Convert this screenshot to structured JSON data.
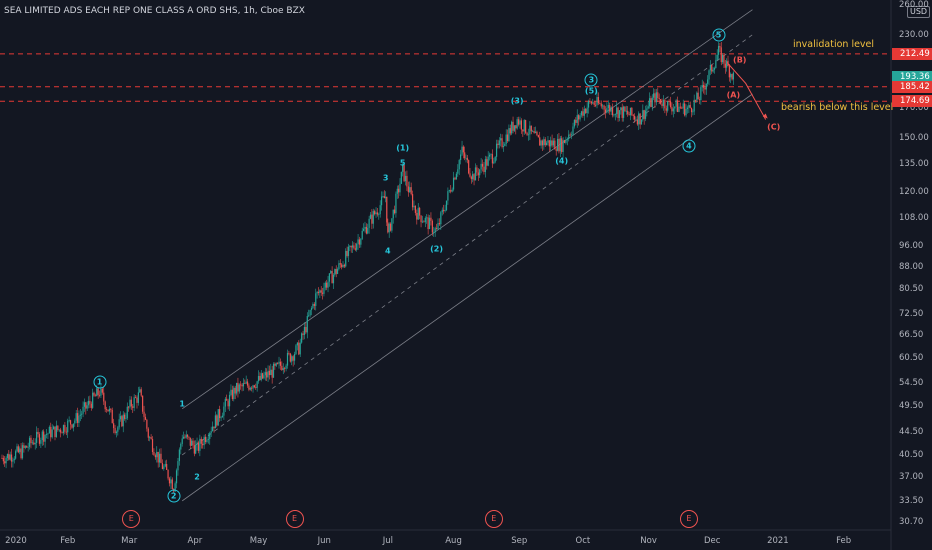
{
  "header": {
    "title": "SEA LIMITED ADS EACH REP ONE CLASS A ORD SHS, 1h, Cboe BZX",
    "currency": "USD"
  },
  "annotations": {
    "invalidation": "invalidation level",
    "bearish": "bearish below this level"
  },
  "price_labels": [
    {
      "label": "212.49",
      "value": 212.49,
      "color": "#e53935"
    },
    {
      "label": "193.36",
      "value": 193.36,
      "color": "#26a69a"
    },
    {
      "label": "185.42",
      "value": 185.42,
      "color": "#e53935"
    },
    {
      "label": "174.69",
      "value": 174.69,
      "color": "#e53935"
    }
  ],
  "waves": {
    "primary": [
      {
        "label": "1",
        "date": "2020-02-16",
        "value": 52.6
      },
      {
        "label": "2",
        "date": "2020-03-22",
        "value": 35.6
      },
      {
        "label": "3",
        "date": "2020-10-05",
        "value": 183
      },
      {
        "label": "4",
        "date": "2020-11-20",
        "value": 151
      },
      {
        "label": "5",
        "date": "2020-12-04",
        "value": 220
      }
    ],
    "intermediate": [
      {
        "label": "(1)",
        "date": "2020-07-08",
        "value": 138
      },
      {
        "label": "(2)",
        "date": "2020-07-24",
        "value": 99
      },
      {
        "label": "(3)",
        "date": "2020-08-31",
        "value": 168
      },
      {
        "label": "(4)",
        "date": "2020-09-21",
        "value": 142
      },
      {
        "label": "(5)",
        "date": "2020-10-05",
        "value": 175
      }
    ],
    "minor": [
      {
        "label": "1",
        "date": "2020-03-26",
        "value": 48
      },
      {
        "label": "2",
        "date": "2020-04-02",
        "value": 38.6
      },
      {
        "label": "3",
        "date": "2020-06-30",
        "value": 122
      },
      {
        "label": "4",
        "date": "2020-07-01",
        "value": 98
      },
      {
        "label": "5",
        "date": "2020-07-08",
        "value": 130
      }
    ],
    "corrective": [
      {
        "label": "(B)",
        "date": "2020-12-14",
        "value": 207,
        "color": "#ef5350"
      },
      {
        "label": "(A)",
        "date": "2020-12-11",
        "value": 179,
        "color": "#ef5350"
      },
      {
        "label": "(C)",
        "date": "2020-12-30",
        "value": 157,
        "color": "#ef5350"
      }
    ]
  },
  "events": [
    {
      "label": "E",
      "date": "2020-03-02"
    },
    {
      "label": "E",
      "date": "2020-05-18"
    },
    {
      "label": "E",
      "date": "2020-08-20"
    },
    {
      "label": "E",
      "date": "2020-11-20"
    }
  ],
  "chart_data": {
    "type": "line",
    "title": "SEA LIMITED ADS EACH REP ONE CLASS A ORD SHS, 1h, Cboe BZX",
    "xlabel": "",
    "ylabel": "",
    "y_scale": "log",
    "ylim": [
      30.7,
      260
    ],
    "xlim": [
      "2020-01-01",
      "2021-03-03"
    ],
    "grid": false,
    "y_ticks": [
      260,
      230,
      212.49,
      193.36,
      185.42,
      174.69,
      170,
      150,
      135,
      120,
      108,
      96,
      88,
      80.5,
      72.5,
      66.5,
      60.5,
      54.5,
      49.5,
      44.5,
      40.5,
      37,
      33.5,
      30.7
    ],
    "x_ticks": [
      {
        "label": "2020",
        "date": "2020-01-01"
      },
      {
        "label": "Feb",
        "date": "2020-02-01"
      },
      {
        "label": "Mar",
        "date": "2020-03-01"
      },
      {
        "label": "Apr",
        "date": "2020-04-01"
      },
      {
        "label": "May",
        "date": "2020-05-01"
      },
      {
        "label": "Jun",
        "date": "2020-06-01"
      },
      {
        "label": "Jul",
        "date": "2020-07-01"
      },
      {
        "label": "Aug",
        "date": "2020-08-01"
      },
      {
        "label": "Sep",
        "date": "2020-09-01"
      },
      {
        "label": "Oct",
        "date": "2020-10-01"
      },
      {
        "label": "Nov",
        "date": "2020-11-01"
      },
      {
        "label": "Dec",
        "date": "2020-12-01"
      },
      {
        "label": "2021",
        "date": "2021-01-01"
      },
      {
        "label": "Feb",
        "date": "2021-02-01"
      }
    ],
    "series": [
      {
        "values": [
          [
            "2020-01-01",
            40
          ],
          [
            "2020-01-10",
            41
          ],
          [
            "2020-01-16",
            43
          ],
          [
            "2020-01-20",
            44
          ],
          [
            "2020-01-28",
            45
          ],
          [
            "2020-02-05",
            47
          ],
          [
            "2020-02-16",
            52.6
          ],
          [
            "2020-02-20",
            49
          ],
          [
            "2020-02-24",
            45
          ],
          [
            "2020-03-02",
            50
          ],
          [
            "2020-03-06",
            52
          ],
          [
            "2020-03-10",
            44
          ],
          [
            "2020-03-16",
            39
          ],
          [
            "2020-03-20",
            37
          ],
          [
            "2020-03-22",
            35.6
          ],
          [
            "2020-03-26",
            44
          ],
          [
            "2020-04-02",
            41.5
          ],
          [
            "2020-04-08",
            45
          ],
          [
            "2020-04-20",
            53
          ],
          [
            "2020-05-01",
            55
          ],
          [
            "2020-05-10",
            58
          ],
          [
            "2020-05-20",
            63
          ],
          [
            "2020-05-28",
            78
          ],
          [
            "2020-06-06",
            86
          ],
          [
            "2020-06-15",
            96
          ],
          [
            "2020-06-30",
            118
          ],
          [
            "2020-07-01",
            100
          ],
          [
            "2020-07-08",
            131
          ],
          [
            "2020-07-14",
            111
          ],
          [
            "2020-07-24",
            102
          ],
          [
            "2020-08-05",
            142
          ],
          [
            "2020-08-10",
            128
          ],
          [
            "2020-08-20",
            140
          ],
          [
            "2020-08-31",
            162
          ],
          [
            "2020-09-10",
            148
          ],
          [
            "2020-09-21",
            146
          ],
          [
            "2020-10-01",
            168
          ],
          [
            "2020-10-05",
            174
          ],
          [
            "2020-10-15",
            169
          ],
          [
            "2020-10-28",
            163
          ],
          [
            "2020-11-04",
            178
          ],
          [
            "2020-11-10",
            172
          ],
          [
            "2020-11-20",
            169
          ],
          [
            "2020-11-25",
            178
          ],
          [
            "2020-12-04",
            214
          ],
          [
            "2020-12-11",
            193.36
          ]
        ]
      }
    ],
    "channels": [
      {
        "name": "",
        "kind": "upper",
        "points": [
          [
            "2020-03-26",
            49
          ],
          [
            "2020-12-20",
            255
          ]
        ]
      },
      {
        "name": "",
        "kind": "median",
        "points": [
          [
            "2020-03-26",
            40.5
          ],
          [
            "2020-12-20",
            230
          ]
        ]
      },
      {
        "name": "",
        "kind": "lower",
        "points": [
          [
            "2020-03-26",
            33.5
          ],
          [
            "2020-12-20",
            180
          ]
        ]
      }
    ],
    "horizontal_levels": [
      212.49,
      185.42,
      174.69
    ]
  }
}
